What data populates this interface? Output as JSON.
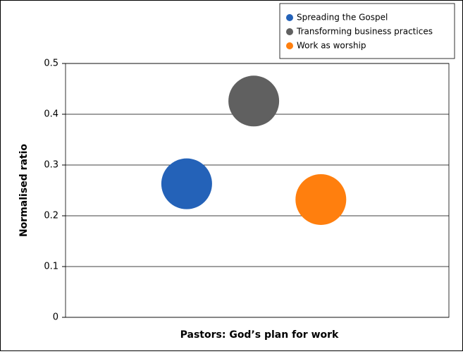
{
  "chart_data": {
    "type": "bubble",
    "ylabel": "Normalised ratio",
    "xlabel": "Pastors: God’s plan for work",
    "series": [
      {
        "name": "Spreading the Gospel",
        "color": "#2462b8",
        "values": [
          0.263
        ]
      },
      {
        "name": "Transforming business practices",
        "color": "#606060",
        "values": [
          0.426
        ]
      },
      {
        "name": "Work as worship",
        "color": "#ff7f0e",
        "values": [
          0.232
        ]
      }
    ],
    "ylim": [
      0,
      0.5
    ],
    "yticks": [
      0,
      0.1,
      0.2,
      0.3,
      0.4,
      0.5
    ],
    "grid": true,
    "legend": "top-right"
  }
}
